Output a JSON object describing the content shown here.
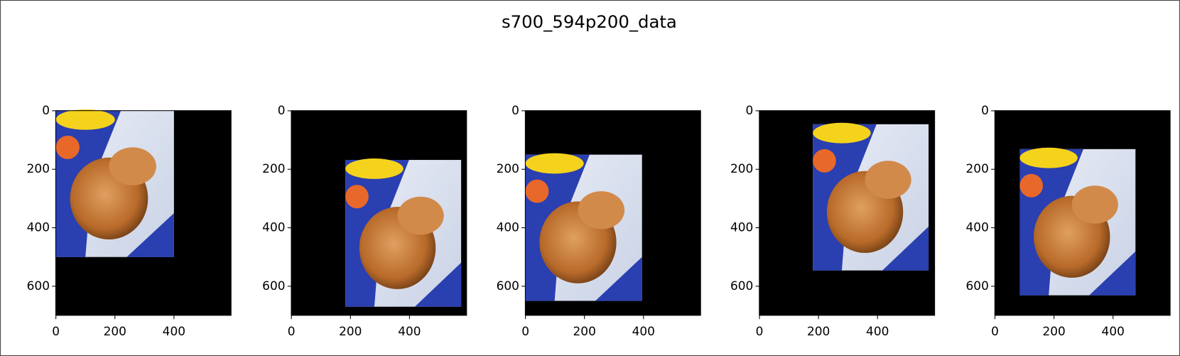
{
  "title": "s700_594p200_data",
  "chart_data": [
    {
      "type": "image",
      "xlim": [
        -0.5,
        593.5
      ],
      "ylim": [
        699.5,
        -0.5
      ],
      "xticks": [
        0,
        200,
        400
      ],
      "yticks": [
        0,
        200,
        400,
        600
      ],
      "photo_x": [
        0,
        400
      ],
      "photo_y": [
        0,
        500
      ]
    },
    {
      "type": "image",
      "xlim": [
        -0.5,
        593.5
      ],
      "ylim": [
        699.5,
        -0.5
      ],
      "xticks": [
        0,
        200,
        400
      ],
      "yticks": [
        0,
        200,
        400,
        600
      ],
      "photo_x": [
        183,
        575
      ],
      "photo_y": [
        168,
        670
      ]
    },
    {
      "type": "image",
      "xlim": [
        -0.5,
        593.5
      ],
      "ylim": [
        699.5,
        -0.5
      ],
      "xticks": [
        0,
        200,
        400
      ],
      "yticks": [
        0,
        200,
        400,
        600
      ],
      "photo_x": [
        0,
        395
      ],
      "photo_y": [
        150,
        650
      ]
    },
    {
      "type": "image",
      "xlim": [
        -0.5,
        593.5
      ],
      "ylim": [
        699.5,
        -0.5
      ],
      "xticks": [
        0,
        200,
        400
      ],
      "yticks": [
        0,
        200,
        400,
        600
      ],
      "photo_x": [
        181,
        573
      ],
      "photo_y": [
        46,
        546
      ]
    },
    {
      "type": "image",
      "xlim": [
        -0.5,
        593.5
      ],
      "ylim": [
        699.5,
        -0.5
      ],
      "xticks": [
        0,
        200,
        400
      ],
      "yticks": [
        0,
        200,
        400,
        600
      ],
      "photo_x": [
        84,
        476
      ],
      "photo_y": [
        131,
        631
      ]
    }
  ]
}
